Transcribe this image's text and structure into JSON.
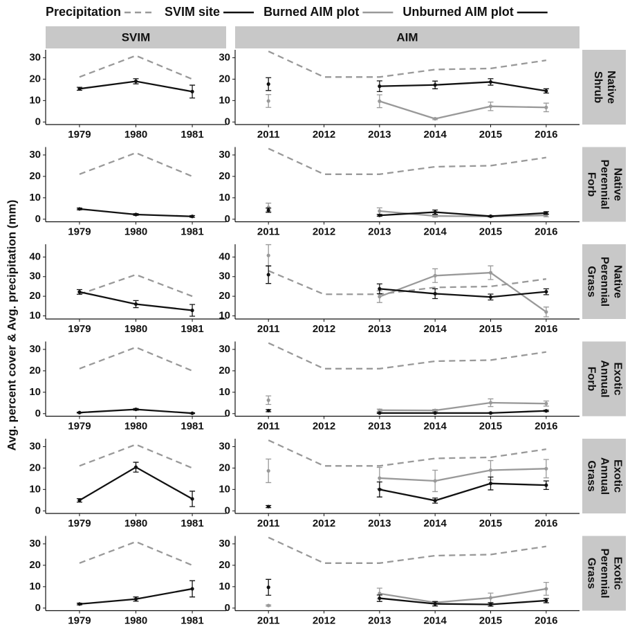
{
  "chart_data": {
    "type": "line",
    "y_label": "Avg. percent cover & Avg. precipitation (mm)",
    "columns": [
      "SVIM",
      "AIM"
    ],
    "series": [
      {
        "name": "Precipitation",
        "color": "#999999",
        "dash": true
      },
      {
        "name": "SVIM site",
        "color": "#111111",
        "dash": false
      },
      {
        "name": "Burned AIM plot",
        "color": "#999999",
        "dash": false
      },
      {
        "name": "Unburned AIM plot",
        "color": "#111111",
        "dash": false
      }
    ],
    "svim_x": [
      1979,
      1980,
      1981
    ],
    "svim_xlim": [
      1978.4,
      1981.6
    ],
    "svim_xticks": [
      1979,
      1980,
      1981
    ],
    "aim_x": [
      2011,
      2012,
      2013,
      2014,
      2015,
      2016
    ],
    "aim_xlim": [
      2010.4,
      2016.6
    ],
    "aim_xticks": [
      2011,
      2012,
      2013,
      2014,
      2015,
      2016
    ],
    "svim_precip": [
      21,
      31,
      20
    ],
    "aim_precip": [
      33,
      21,
      21,
      24.5,
      25,
      28.8
    ],
    "rows": [
      {
        "strip": [
          "Native",
          "Shrub"
        ],
        "ylim": [
          -1.2,
          33.7
        ],
        "yticks": [
          0,
          10,
          20,
          30
        ],
        "svim": {
          "values": [
            15.5,
            19,
            14.2
          ],
          "errors": [
            0.7,
            1.2,
            3
          ]
        },
        "burned": {
          "values": [
            9.8,
            null,
            9.7,
            1.5,
            7.3,
            6.8
          ],
          "errors": [
            3,
            null,
            3,
            0.4,
            2,
            2
          ]
        },
        "unburned": {
          "values": [
            17.7,
            null,
            16.7,
            17.3,
            18.7,
            14.5
          ],
          "errors": [
            3,
            null,
            2.5,
            1.8,
            1.5,
            1
          ]
        }
      },
      {
        "strip": [
          "Native",
          "Perennial",
          "Forb"
        ],
        "ylim": [
          -1.2,
          33.7
        ],
        "yticks": [
          0,
          10,
          20,
          30
        ],
        "svim": {
          "values": [
            4.8,
            2.2,
            1.3
          ],
          "errors": [
            0.4,
            0.4,
            0.4
          ]
        },
        "burned": {
          "values": [
            5.5,
            null,
            3.8,
            1.5,
            1.3,
            1.8
          ],
          "errors": [
            2,
            null,
            1.5,
            0.5,
            0.3,
            0.7
          ]
        },
        "unburned": {
          "values": [
            4.2,
            null,
            1.8,
            3.3,
            1.4,
            2.9
          ],
          "errors": [
            1,
            null,
            0.4,
            1,
            0.3,
            0.6
          ]
        }
      },
      {
        "strip": [
          "Native",
          "Perennial",
          "Grass"
        ],
        "ylim": [
          8.4,
          46.5
        ],
        "yticks": [
          10,
          20,
          30,
          40
        ],
        "svim": {
          "values": [
            22.2,
            16,
            12.8
          ],
          "errors": [
            1.2,
            1.8,
            3
          ]
        },
        "burned": {
          "values": [
            40.8,
            null,
            19.8,
            30.5,
            32,
            12
          ],
          "errors": [
            5.5,
            null,
            3,
            3.5,
            3.5,
            2.5
          ]
        },
        "unburned": {
          "values": [
            31,
            null,
            23.8,
            21.3,
            19.6,
            22.3
          ],
          "errors": [
            4.5,
            null,
            2.5,
            2.5,
            1.5,
            1.5
          ]
        }
      },
      {
        "strip": [
          "Exotic",
          "Annual",
          "Forb"
        ],
        "ylim": [
          -1.2,
          33.7
        ],
        "yticks": [
          0,
          10,
          20,
          30
        ],
        "svim": {
          "values": [
            0.5,
            2,
            0.2
          ],
          "errors": [
            0.2,
            0.4,
            0.2
          ]
        },
        "burned": {
          "values": [
            6.3,
            null,
            1.6,
            1.5,
            5.1,
            4.7
          ],
          "errors": [
            2,
            null,
            0.5,
            0.5,
            1.8,
            1.2
          ]
        },
        "unburned": {
          "values": [
            1.4,
            null,
            0.3,
            0.3,
            0.3,
            1.3
          ],
          "errors": [
            0.5,
            null,
            0.2,
            0.2,
            0.2,
            0.3
          ]
        }
      },
      {
        "strip": [
          "Exotic",
          "Annual",
          "Grass"
        ],
        "ylim": [
          -1.2,
          33.7
        ],
        "yticks": [
          0,
          10,
          20,
          30
        ],
        "svim": {
          "values": [
            4.9,
            20.4,
            5.6
          ],
          "errors": [
            0.8,
            2.3,
            3.6
          ]
        },
        "burned": {
          "values": [
            18.7,
            null,
            15.3,
            14,
            19,
            19.7
          ],
          "errors": [
            5.5,
            null,
            5,
            5,
            4.5,
            4.3
          ]
        },
        "unburned": {
          "values": [
            2,
            null,
            10,
            4.8,
            12.8,
            12
          ],
          "errors": [
            0.5,
            null,
            3.5,
            1.2,
            3,
            2
          ]
        }
      },
      {
        "strip": [
          "Exotic",
          "Perennial",
          "Grass"
        ],
        "ylim": [
          -1.2,
          33.7
        ],
        "yticks": [
          0,
          10,
          20,
          30
        ],
        "svim": {
          "values": [
            1.9,
            4.2,
            9
          ],
          "errors": [
            0.4,
            1,
            3.8
          ]
        },
        "burned": {
          "values": [
            1.2,
            null,
            6.8,
            2.6,
            4.8,
            9
          ],
          "errors": [
            0.3,
            null,
            2.5,
            0.6,
            2.2,
            3
          ]
        },
        "unburned": {
          "values": [
            9.7,
            null,
            4.6,
            2,
            1.7,
            3.5
          ],
          "errors": [
            3.7,
            null,
            1.5,
            1,
            0.8,
            1
          ]
        }
      }
    ]
  }
}
